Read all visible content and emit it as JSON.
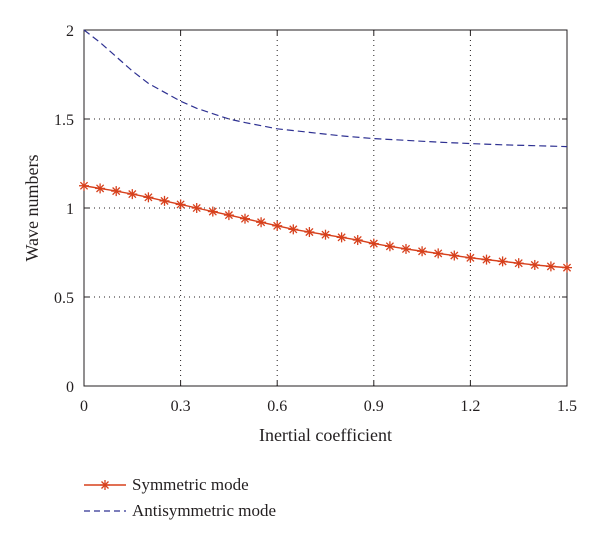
{
  "chart_data": {
    "type": "line",
    "xlabel": "Inertial coefficient",
    "ylabel": "Wave numbers",
    "xlim": [
      0,
      1.5
    ],
    "ylim": [
      0,
      2
    ],
    "xticks": [
      0,
      0.3,
      0.6,
      0.9,
      1.2,
      1.5
    ],
    "xtick_labels": [
      "0",
      "0.3",
      "0.6",
      "0.9",
      "1.2",
      "1.5"
    ],
    "yticks": [
      0,
      0.5,
      1,
      1.5,
      2
    ],
    "ytick_labels": [
      "0",
      "0.5",
      "1",
      "1.5",
      "2"
    ],
    "grid": true,
    "legend_position": "below",
    "series": [
      {
        "name": "Symmetric mode",
        "color": "#d7401c",
        "line_style": "solid",
        "marker": "asterisk",
        "x": [
          0,
          0.05,
          0.1,
          0.15,
          0.2,
          0.25,
          0.3,
          0.35,
          0.4,
          0.45,
          0.5,
          0.55,
          0.6,
          0.65,
          0.7,
          0.75,
          0.8,
          0.85,
          0.9,
          0.95,
          1.0,
          1.05,
          1.1,
          1.15,
          1.2,
          1.25,
          1.3,
          1.35,
          1.4,
          1.45,
          1.5
        ],
        "y": [
          1.125,
          1.11,
          1.095,
          1.078,
          1.06,
          1.04,
          1.02,
          1.0,
          0.98,
          0.96,
          0.94,
          0.92,
          0.9,
          0.88,
          0.865,
          0.85,
          0.835,
          0.82,
          0.8,
          0.785,
          0.77,
          0.757,
          0.745,
          0.733,
          0.72,
          0.71,
          0.7,
          0.69,
          0.68,
          0.672,
          0.665
        ]
      },
      {
        "name": "Antisymmetric mode",
        "color": "#2e3192",
        "line_style": "dashed",
        "marker": "none",
        "x": [
          0,
          0.05,
          0.1,
          0.15,
          0.2,
          0.25,
          0.3,
          0.35,
          0.4,
          0.45,
          0.5,
          0.6,
          0.7,
          0.8,
          0.9,
          1.0,
          1.1,
          1.2,
          1.3,
          1.4,
          1.5
        ],
        "y": [
          2.0,
          1.93,
          1.85,
          1.77,
          1.7,
          1.65,
          1.6,
          1.56,
          1.53,
          1.5,
          1.48,
          1.445,
          1.425,
          1.405,
          1.39,
          1.38,
          1.37,
          1.362,
          1.355,
          1.35,
          1.345
        ]
      }
    ]
  }
}
